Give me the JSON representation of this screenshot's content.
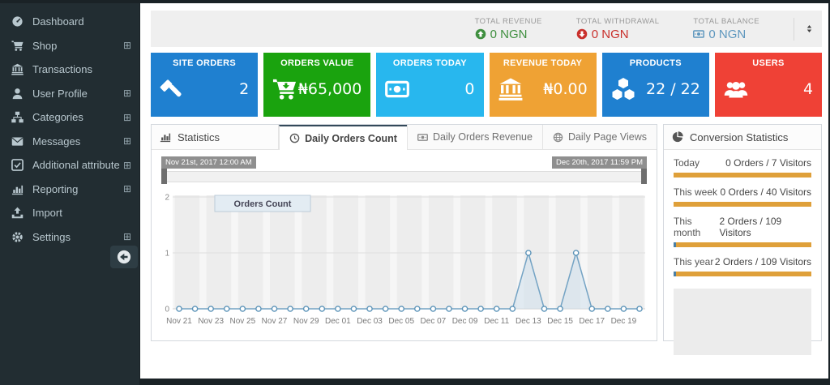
{
  "sidebar": {
    "items": [
      {
        "label": "Dashboard",
        "icon": "gauge-icon",
        "expandable": false
      },
      {
        "label": "Shop",
        "icon": "cart-icon",
        "expandable": true
      },
      {
        "label": "Transactions",
        "icon": "bank-icon",
        "expandable": false
      },
      {
        "label": "User Profile",
        "icon": "user-icon",
        "expandable": true
      },
      {
        "label": "Categories",
        "icon": "sitemap-icon",
        "expandable": true
      },
      {
        "label": "Messages",
        "icon": "envelope-icon",
        "expandable": true
      },
      {
        "label": "Additional attribute",
        "icon": "check-square-icon",
        "expandable": true
      },
      {
        "label": "Reporting",
        "icon": "bar-chart-icon",
        "expandable": true
      },
      {
        "label": "Import",
        "icon": "upload-icon",
        "expandable": false
      },
      {
        "label": "Settings",
        "icon": "gear-icon",
        "expandable": true
      }
    ],
    "expand_glyph": "⊞"
  },
  "topbar": {
    "metrics": [
      {
        "label": "TOTAL REVENUE",
        "value": "0 NGN",
        "icon": "arrow-circle-up-icon",
        "color": "#3f8f3f"
      },
      {
        "label": "TOTAL WITHDRAWAL",
        "value": "0 NGN",
        "icon": "arrow-circle-down-icon",
        "color": "#c9302c"
      },
      {
        "label": "TOTAL BALANCE",
        "value": "0 NGN",
        "icon": "money-icon",
        "color": "#5e97be"
      }
    ]
  },
  "cards": [
    {
      "title": "SITE ORDERS",
      "value": "2",
      "icon": "gavel-icon",
      "bg": "#1f80d0"
    },
    {
      "title": "ORDERS VALUE",
      "value": "₦65,000",
      "icon": "cart-arrow-down-icon",
      "bg": "#1aa30e"
    },
    {
      "title": "ORDERS TODAY",
      "value": "0",
      "icon": "money-icon",
      "bg": "#28b7ee"
    },
    {
      "title": "REVENUE TODAY",
      "value": "₦0.00",
      "icon": "bank-icon",
      "bg": "#efa234"
    },
    {
      "title": "PRODUCTS",
      "value": "22 / 22",
      "icon": "cubes-icon",
      "bg": "#1f80d0"
    },
    {
      "title": "USERS",
      "value": "4",
      "icon": "users-icon",
      "bg": "#ef4136"
    }
  ],
  "statistics": {
    "title": "Statistics",
    "tabs": [
      {
        "label": "Daily Orders Count",
        "icon": "clock-icon",
        "active": true
      },
      {
        "label": "Daily Orders Revenue",
        "icon": "money-icon",
        "active": false
      },
      {
        "label": "Daily Page Views",
        "icon": "globe-icon",
        "active": false
      }
    ],
    "range": {
      "start": "Nov 21st, 2017 12:00 AM",
      "end": "Dec 20th, 2017 11:59 PM"
    }
  },
  "chart_data": {
    "type": "line",
    "title": "Daily Orders Count",
    "legend": "Orders Count",
    "legend_position": "top-left-inside",
    "grid": true,
    "x": [
      "Nov 21",
      "Nov 22",
      "Nov 23",
      "Nov 24",
      "Nov 25",
      "Nov 26",
      "Nov 27",
      "Nov 28",
      "Nov 29",
      "Nov 30",
      "Dec 01",
      "Dec 02",
      "Dec 03",
      "Dec 04",
      "Dec 05",
      "Dec 06",
      "Dec 07",
      "Dec 08",
      "Dec 09",
      "Dec 10",
      "Dec 11",
      "Dec 12",
      "Dec 13",
      "Dec 14",
      "Dec 15",
      "Dec 16",
      "Dec 17",
      "Dec 18",
      "Dec 19",
      "Dec 20"
    ],
    "tick_labels": [
      "Nov 21",
      "Nov 23",
      "Nov 25",
      "Nov 27",
      "Nov 29",
      "Dec 01",
      "Dec 03",
      "Dec 05",
      "Dec 07",
      "Dec 09",
      "Dec 11",
      "Dec 13",
      "Dec 15",
      "Dec 17",
      "Dec 19"
    ],
    "series": [
      {
        "name": "Orders Count",
        "values": [
          0,
          0,
          0,
          0,
          0,
          0,
          0,
          0,
          0,
          0,
          0,
          0,
          0,
          0,
          0,
          0,
          0,
          0,
          0,
          0,
          0,
          0,
          1,
          0,
          0,
          1,
          0,
          0,
          0,
          0
        ]
      }
    ],
    "ylim": [
      0,
      2
    ],
    "yticks": [
      0,
      1,
      2
    ],
    "line_color": "#74a3c4",
    "fill_color": "#cfe0ec"
  },
  "conversion": {
    "title": "Conversion Statistics",
    "rows": [
      {
        "label": "Today",
        "value": "0 Orders / 7 Visitors",
        "rate_pct": 0
      },
      {
        "label": "This week",
        "value": "0 Orders / 40 Visitors",
        "rate_pct": 0
      },
      {
        "label": "This month",
        "value": "2 Orders / 109 Visitors",
        "rate_pct": 1.8
      },
      {
        "label": "This year",
        "value": "2 Orders / 109 Visitors",
        "rate_pct": 1.8
      }
    ]
  }
}
